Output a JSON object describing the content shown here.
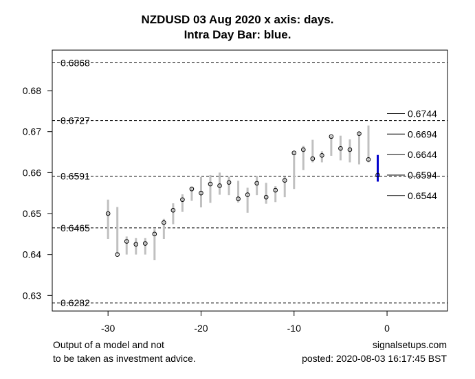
{
  "chart_data": {
    "type": "bar",
    "title_line1": "NZDUSD 03 Aug 2020 x axis: days.",
    "title_line2": "Intra Day Bar: blue.",
    "x_range": [
      -36,
      6.5
    ],
    "y_range": [
      0.6262,
      0.6899
    ],
    "x_ticks": [
      -30,
      -20,
      -10,
      0
    ],
    "y_ticks": [
      0.63,
      0.64,
      0.65,
      0.66,
      0.67,
      0.68
    ],
    "h_levels": [
      {
        "value": 0.6868,
        "label": "0.6868"
      },
      {
        "value": 0.6727,
        "label": "0.6727"
      },
      {
        "value": 0.6591,
        "label": "0.6591"
      },
      {
        "value": 0.6465,
        "label": "0.6465"
      },
      {
        "value": 0.6282,
        "label": "0.6282"
      }
    ],
    "right_levels": [
      {
        "value": 0.6744,
        "label": "0.6744"
      },
      {
        "value": 0.6694,
        "label": "0.6694"
      },
      {
        "value": 0.6644,
        "label": "0.6644"
      },
      {
        "value": 0.6594,
        "label": "0.6594"
      },
      {
        "value": 0.6544,
        "label": "0.6544"
      }
    ],
    "daily_bars": [
      {
        "x": -30,
        "high": 0.6534,
        "low": 0.6438,
        "close": 0.65
      },
      {
        "x": -29,
        "high": 0.6516,
        "low": 0.64,
        "close": 0.64
      },
      {
        "x": -28,
        "high": 0.6444,
        "low": 0.64,
        "close": 0.6432
      },
      {
        "x": -27,
        "high": 0.644,
        "low": 0.64,
        "close": 0.6425
      },
      {
        "x": -26,
        "high": 0.644,
        "low": 0.64,
        "close": 0.6427
      },
      {
        "x": -25,
        "high": 0.6462,
        "low": 0.6386,
        "close": 0.645
      },
      {
        "x": -24,
        "high": 0.6487,
        "low": 0.6438,
        "close": 0.6478
      },
      {
        "x": -23,
        "high": 0.6525,
        "low": 0.6474,
        "close": 0.6508
      },
      {
        "x": -22,
        "high": 0.6547,
        "low": 0.6504,
        "close": 0.6534
      },
      {
        "x": -21,
        "high": 0.6566,
        "low": 0.6531,
        "close": 0.656
      },
      {
        "x": -20,
        "high": 0.6589,
        "low": 0.6515,
        "close": 0.655
      },
      {
        "x": -19,
        "high": 0.6594,
        "low": 0.6526,
        "close": 0.6572
      },
      {
        "x": -18,
        "high": 0.66,
        "low": 0.6546,
        "close": 0.6568
      },
      {
        "x": -17,
        "high": 0.659,
        "low": 0.6545,
        "close": 0.6576
      },
      {
        "x": -16,
        "high": 0.658,
        "low": 0.6527,
        "close": 0.6536
      },
      {
        "x": -15,
        "high": 0.6563,
        "low": 0.6502,
        "close": 0.6546
      },
      {
        "x": -14,
        "high": 0.6592,
        "low": 0.6545,
        "close": 0.6574
      },
      {
        "x": -13,
        "high": 0.6575,
        "low": 0.6524,
        "close": 0.654
      },
      {
        "x": -12,
        "high": 0.6567,
        "low": 0.6528,
        "close": 0.6557
      },
      {
        "x": -11,
        "high": 0.659,
        "low": 0.654,
        "close": 0.6581
      },
      {
        "x": -10,
        "high": 0.665,
        "low": 0.656,
        "close": 0.6648
      },
      {
        "x": -9,
        "high": 0.6665,
        "low": 0.6606,
        "close": 0.6656
      },
      {
        "x": -8,
        "high": 0.668,
        "low": 0.6625,
        "close": 0.6634
      },
      {
        "x": -7,
        "high": 0.6652,
        "low": 0.6625,
        "close": 0.6642
      },
      {
        "x": -6,
        "high": 0.669,
        "low": 0.6641,
        "close": 0.6688
      },
      {
        "x": -5,
        "high": 0.669,
        "low": 0.663,
        "close": 0.6659
      },
      {
        "x": -4,
        "high": 0.6681,
        "low": 0.6625,
        "close": 0.6656
      },
      {
        "x": -3,
        "high": 0.67,
        "low": 0.662,
        "close": 0.6695
      },
      {
        "x": -2,
        "high": 0.6715,
        "low": 0.6625,
        "close": 0.6632
      }
    ],
    "intraday_bar": {
      "x": -1,
      "high": 0.6643,
      "low": 0.6578,
      "close": 0.6594
    },
    "colors": {
      "daily": "#c0c0c0",
      "intraday": "#0000cc",
      "levels": "#000000"
    }
  },
  "footer": {
    "disclaimer_line1": "Output of a model and not",
    "disclaimer_line2": "to be taken as investment advice.",
    "site": "signalsetups.com",
    "posted": "posted: 2020-08-03 16:17:45 BST"
  }
}
